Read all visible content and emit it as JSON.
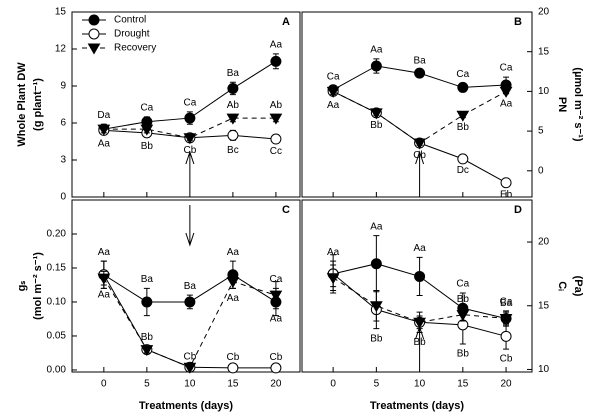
{
  "chart_data": [
    {
      "type": "line",
      "panel": "A",
      "ylabel": [
        "Whole Plant DW",
        "(g plant⁻¹)"
      ],
      "yaxis_side": "left",
      "xtick_labels": false,
      "legend": "upper left",
      "arrow": "up",
      "x": [
        0,
        5,
        10,
        15,
        20
      ],
      "xlim": [
        -3.7,
        22.8
      ],
      "xticks": [
        0,
        5,
        10,
        15,
        20
      ],
      "ylim": [
        0,
        15
      ],
      "yticks": [
        0,
        3,
        6,
        9,
        12,
        15
      ],
      "series": [
        {
          "name": "Control",
          "color": "#000000",
          "marker": "circle-filled",
          "dashed": false,
          "values": [
            5.5,
            6.1,
            6.4,
            8.8,
            11.0
          ],
          "errors": [
            0.4,
            0.4,
            0.5,
            0.5,
            0.6
          ],
          "point_labels": [
            "Da",
            "Ca",
            "Ca",
            "Ba",
            "Aa"
          ],
          "label_side": "above"
        },
        {
          "name": "Drought",
          "color": "#000000",
          "marker": "circle-open",
          "dashed": false,
          "values": [
            5.4,
            5.2,
            4.8,
            5.0,
            4.7
          ],
          "errors": [
            0.3,
            0.3,
            0.2,
            0.4,
            0.2
          ],
          "point_labels": [
            "Aa",
            "Bb",
            "Cb",
            "Bc",
            "Cc"
          ],
          "label_side": "below"
        },
        {
          "name": "Recovery",
          "color": "#000000",
          "marker": "triangle-down",
          "dashed": true,
          "values": [
            5.5,
            5.5,
            4.8,
            6.4,
            6.4
          ],
          "errors": [
            0.3,
            0.3,
            0.2,
            0.3,
            0.3
          ],
          "point_labels": [
            null,
            null,
            null,
            "Ab",
            "Ab"
          ],
          "label_side": "above"
        }
      ]
    },
    {
      "type": "line",
      "panel": "B",
      "ylabel": [
        "PN",
        "(µmol m⁻² s⁻¹)"
      ],
      "yaxis_side": "right",
      "xtick_labels": false,
      "arrow": "up",
      "x": [
        0,
        5,
        10,
        15,
        20
      ],
      "xlim": [
        -3.6,
        23.0
      ],
      "xticks": [
        0,
        5,
        10,
        15,
        20
      ],
      "ylim": [
        -3.3,
        20
      ],
      "yticks": [
        0,
        5,
        10,
        15,
        20
      ],
      "series": [
        {
          "color": "#000000",
          "marker": "circle-filled",
          "dashed": false,
          "values": [
            10.2,
            13.2,
            12.3,
            10.5,
            10.8
          ],
          "errors": [
            0.5,
            0.9,
            0.4,
            0.5,
            1.0
          ],
          "point_labels": [
            "Ca",
            "Aa",
            "Ba",
            "Ca",
            "Ca"
          ],
          "label_side": "above"
        },
        {
          "color": "#000000",
          "marker": "circle-open",
          "dashed": false,
          "values": [
            10.0,
            7.3,
            3.5,
            1.5,
            -1.5
          ],
          "errors": [
            0.5,
            0.3,
            0.3,
            0.2,
            0.3
          ],
          "point_labels": [
            "Aa",
            "Bb",
            "Cb",
            "Dc",
            "Eb"
          ],
          "label_side": "below"
        },
        {
          "color": "#000000",
          "marker": "triangle-down",
          "dashed": true,
          "values": [
            10.0,
            7.3,
            3.5,
            7.0,
            10.0
          ],
          "errors": [
            0.4,
            0.3,
            0.3,
            0.3,
            0.3
          ],
          "point_labels": [
            null,
            null,
            null,
            "Bb",
            "Aa"
          ],
          "label_side": "below"
        }
      ]
    },
    {
      "type": "line",
      "panel": "C",
      "ylabel": [
        "gₛ",
        "(mol m⁻² s⁻¹)"
      ],
      "yaxis_side": "left",
      "xlabel": "Treatments (days)",
      "arrow": "down",
      "x": [
        0,
        5,
        10,
        15,
        20
      ],
      "xlim": [
        -3.7,
        22.8
      ],
      "xticks": [
        0,
        5,
        10,
        15,
        20
      ],
      "ylim": [
        -0.003,
        0.25
      ],
      "yticks": [
        {
          "value": 0,
          "label": "0.00"
        },
        0.05,
        {
          "value": 0.1,
          "label": "0.10"
        },
        0.15,
        {
          "value": 0.2,
          "label": "0.20"
        }
      ],
      "series": [
        {
          "color": "#000000",
          "marker": "circle-filled",
          "dashed": false,
          "values": [
            0.14,
            0.1,
            0.1,
            0.14,
            0.1
          ],
          "errors": [
            0.02,
            0.02,
            0.01,
            0.02,
            0.02
          ],
          "point_labels": [
            "Aa",
            "Ba",
            "Ba",
            "Aa",
            "Ca"
          ],
          "label_side": "above"
        },
        {
          "color": "#000000",
          "marker": "circle-open",
          "dashed": false,
          "values": [
            0.14,
            0.03,
            0.004,
            0.003,
            0.003
          ],
          "errors": [
            0.02,
            0.005,
            0.002,
            0.002,
            0.002
          ],
          "point_labels": [
            null,
            "Bb",
            "Cb",
            "Cb",
            "Cb"
          ],
          "label_side": "above"
        },
        {
          "color": "#000000",
          "marker": "triangle-down",
          "dashed": true,
          "values": [
            0.135,
            0.03,
            0.004,
            0.13,
            0.11
          ],
          "errors": [
            0.01,
            0.005,
            0.002,
            0.01,
            0.02
          ],
          "point_labels": [
            "Aa",
            null,
            null,
            "Aa",
            "Aa"
          ],
          "label_side": "below"
        }
      ]
    },
    {
      "type": "line",
      "panel": "D",
      "ylabel": [
        "Cᵢ",
        "(Pa)"
      ],
      "yaxis_side": "right",
      "xlabel": "Treatments (days)",
      "arrow": "up",
      "x": [
        0,
        5,
        10,
        15,
        20
      ],
      "xlim": [
        -3.6,
        23.0
      ],
      "xticks": [
        0,
        5,
        10,
        15,
        20
      ],
      "ylim": [
        9.8,
        23.3
      ],
      "yticks": [
        10,
        15,
        20
      ],
      "series": [
        {
          "color": "#000000",
          "marker": "circle-filled",
          "dashed": false,
          "values": [
            17.5,
            18.3,
            17.3,
            14.8,
            14.0
          ],
          "errors": [
            1.0,
            2.2,
            1.5,
            1.2,
            0.6
          ],
          "point_labels": [
            "Aa",
            "Aa",
            "Aa",
            "Ca",
            "Ca"
          ],
          "label_side": "above"
        },
        {
          "color": "#000000",
          "marker": "circle-open",
          "dashed": false,
          "values": [
            17.5,
            14.7,
            13.7,
            13.5,
            12.6
          ],
          "errors": [
            1.5,
            1.5,
            0.8,
            1.5,
            1.0
          ],
          "point_labels": [
            null,
            "Bb",
            "Bb",
            "Bb",
            "Cb"
          ],
          "label_side": "below"
        },
        {
          "color": "#000000",
          "marker": "triangle-down",
          "dashed": true,
          "values": [
            17.2,
            15.0,
            13.7,
            14.3,
            14.0
          ],
          "errors": [
            1.0,
            1.2,
            0.5,
            0.5,
            0.5
          ],
          "point_labels": [
            null,
            null,
            null,
            "Bb",
            "Ba"
          ],
          "label_side": "above"
        }
      ]
    }
  ]
}
